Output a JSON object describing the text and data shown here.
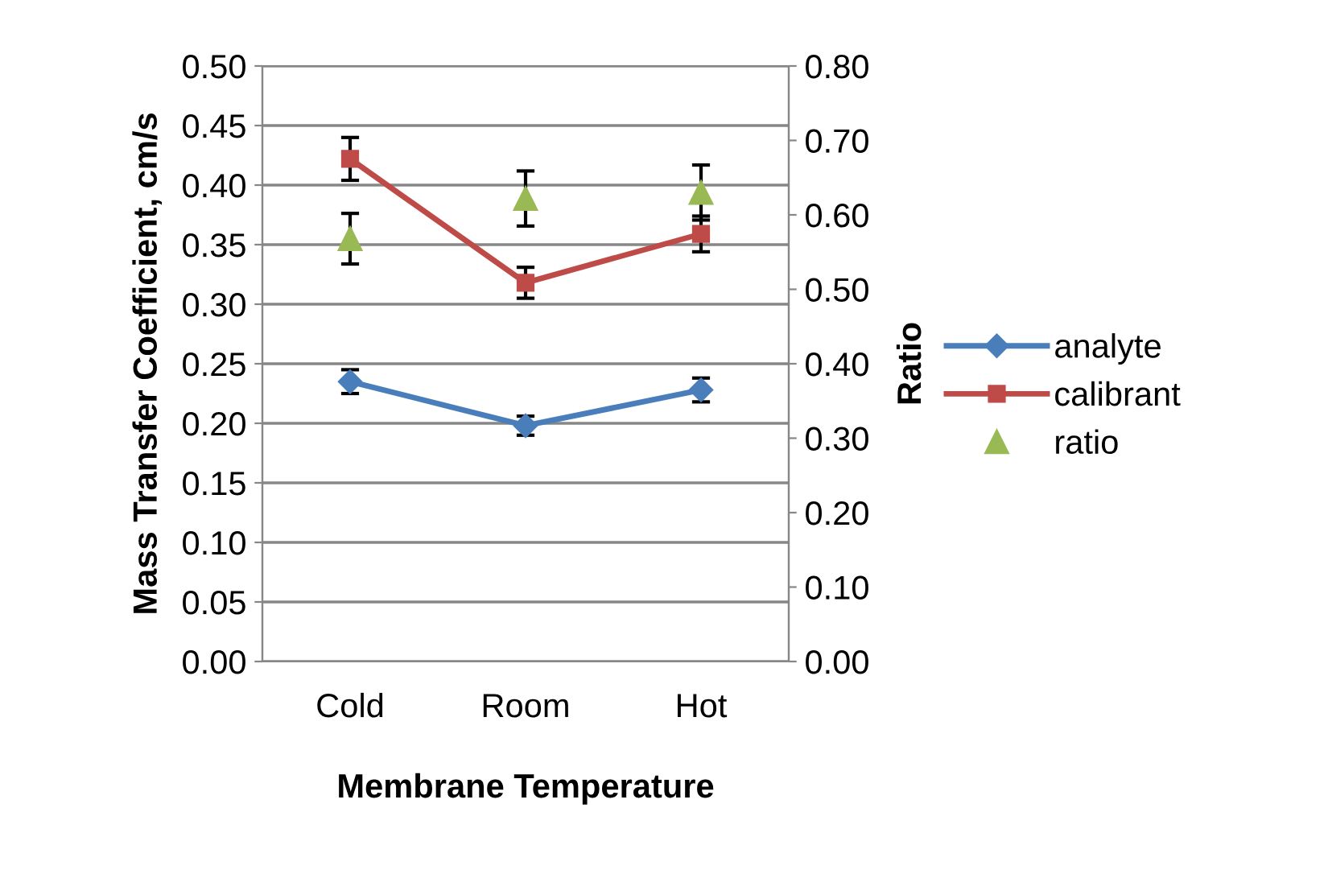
{
  "chart_data": {
    "type": "line",
    "xlabel": "Membrane Temperature",
    "ylabel": "Mass Transfer Coefficient, cm/s",
    "y2label": "Ratio",
    "categories": [
      "Cold",
      "Room",
      "Hot"
    ],
    "series": [
      {
        "name": "analyte",
        "color": "#4a7ebb",
        "marker": "diamond",
        "values": [
          0.235,
          0.198,
          0.228
        ],
        "errors": [
          0.01,
          0.008,
          0.01
        ]
      },
      {
        "name": "calibrant",
        "color": "#be4b48",
        "marker": "square",
        "values": [
          0.422,
          0.318,
          0.359
        ],
        "errors": [
          0.018,
          0.013,
          0.015
        ]
      },
      {
        "name": "ratio",
        "type": "scatter",
        "axis": "y2",
        "color": "#98b954",
        "marker": "triangle",
        "values": [
          0.568,
          0.622,
          0.63
        ],
        "errors": [
          0.034,
          0.037,
          0.037
        ]
      }
    ],
    "ylim": [
      0,
      0.5
    ],
    "yticks": [
      {
        "value": 0,
        "label": "0.00"
      },
      {
        "value": 0.05,
        "label": "0.05"
      },
      {
        "value": 0.1,
        "label": "0.10"
      },
      {
        "value": 0.15,
        "label": "0.15"
      },
      {
        "value": 0.2,
        "label": "0.20"
      },
      {
        "value": 0.25,
        "label": "0.25"
      },
      {
        "value": 0.3,
        "label": "0.30"
      },
      {
        "value": 0.35,
        "label": "0.35"
      },
      {
        "value": 0.4,
        "label": "0.40"
      },
      {
        "value": 0.45,
        "label": "0.45"
      },
      {
        "value": 0.5,
        "label": "0.50"
      }
    ],
    "y2lim": [
      0,
      0.8
    ],
    "y2ticks": [
      {
        "value": 0,
        "label": "0.00"
      },
      {
        "value": 0.1,
        "label": "0.10"
      },
      {
        "value": 0.2,
        "label": "0.20"
      },
      {
        "value": 0.3,
        "label": "0.30"
      },
      {
        "value": 0.4,
        "label": "0.40"
      },
      {
        "value": 0.5,
        "label": "0.50"
      },
      {
        "value": 0.6,
        "label": "0.60"
      },
      {
        "value": 0.7,
        "label": "0.70"
      },
      {
        "value": 0.8,
        "label": "0.80"
      }
    ],
    "grid": "y",
    "legend": "right"
  }
}
